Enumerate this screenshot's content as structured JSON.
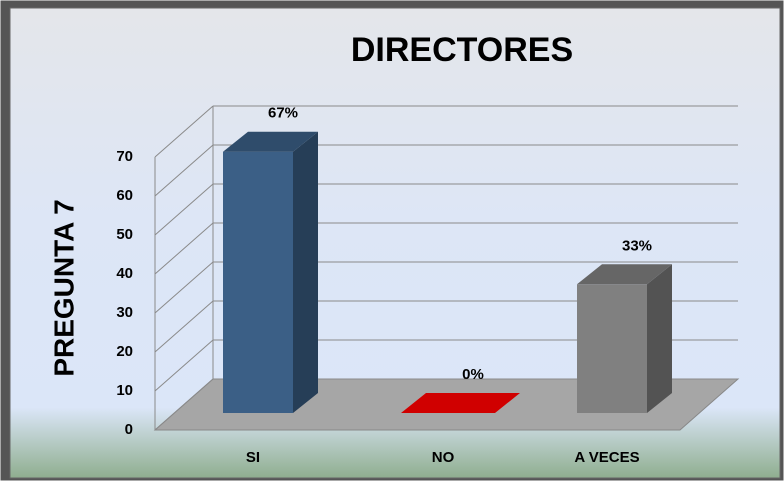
{
  "chart_data": {
    "type": "bar3d",
    "title": "DIRECTORES",
    "y_label": "PREGUNTA  7",
    "categories": [
      "SI",
      "NO",
      "A VECES"
    ],
    "values": [
      67,
      0,
      33
    ],
    "value_labels": [
      "67%",
      "0%",
      "33%"
    ],
    "colors": [
      "#3b5f86",
      "#d00000",
      "#808080"
    ],
    "ylim": [
      0,
      70
    ],
    "yticks": [
      0,
      10,
      20,
      30,
      40,
      50,
      60,
      70
    ],
    "grid": true
  }
}
